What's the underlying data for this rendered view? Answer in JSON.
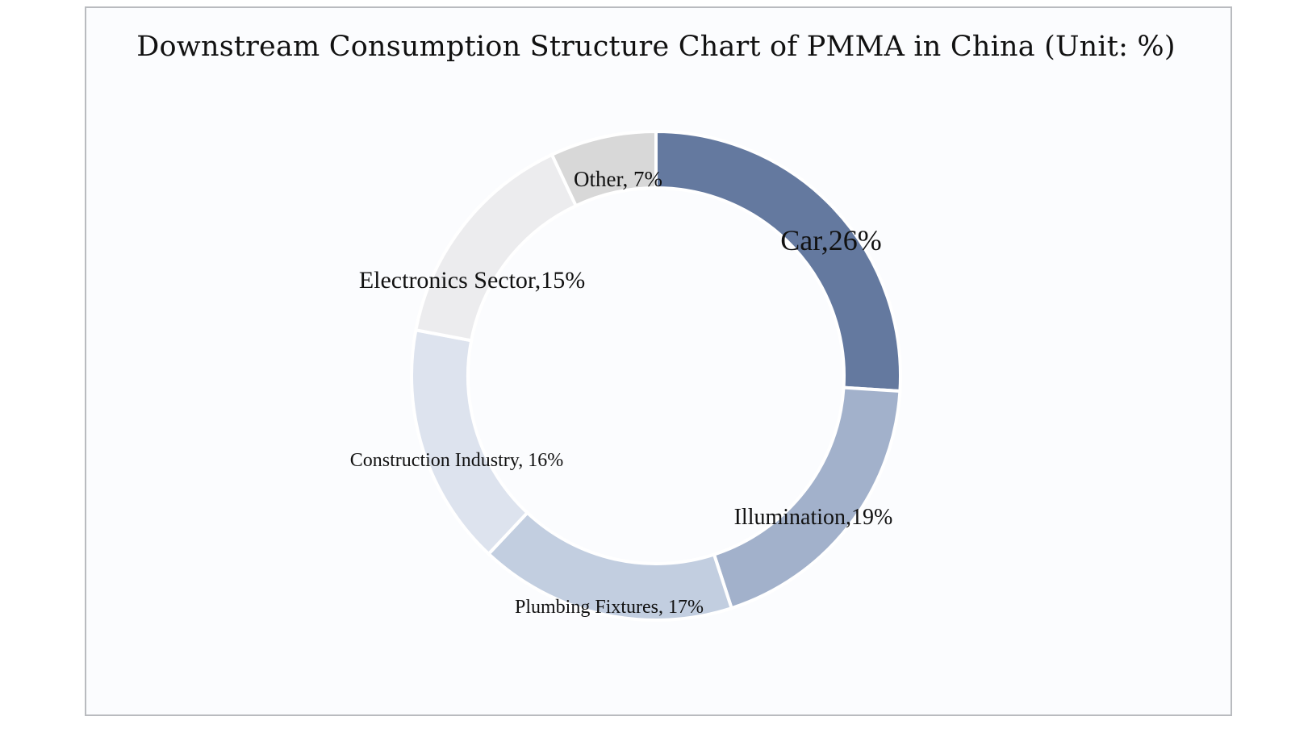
{
  "chart_data": {
    "type": "pie",
    "donut": true,
    "title": "Downstream Consumption Structure Chart of PMMA in China (Unit: %)",
    "unit": "%",
    "slices": [
      {
        "name": "Car",
        "value": 26,
        "label": "Car,26%",
        "color": "#64799f"
      },
      {
        "name": "Illumination",
        "value": 19,
        "label": "Illumination,19%",
        "color": "#a2b1cb"
      },
      {
        "name": "Plumbing Fixtures",
        "value": 17,
        "label": "Plumbing Fixtures, 17%",
        "color": "#c2cee0"
      },
      {
        "name": "Construction Industry",
        "value": 16,
        "label": "Construction Industry, 16%",
        "color": "#dde3ee"
      },
      {
        "name": "Electronics Sector",
        "value": 15,
        "label": "Electronics Sector,15%",
        "color": "#ececee"
      },
      {
        "name": "Other",
        "value": 7,
        "label": "Other, 7%",
        "color": "#d8d8d8"
      }
    ]
  }
}
